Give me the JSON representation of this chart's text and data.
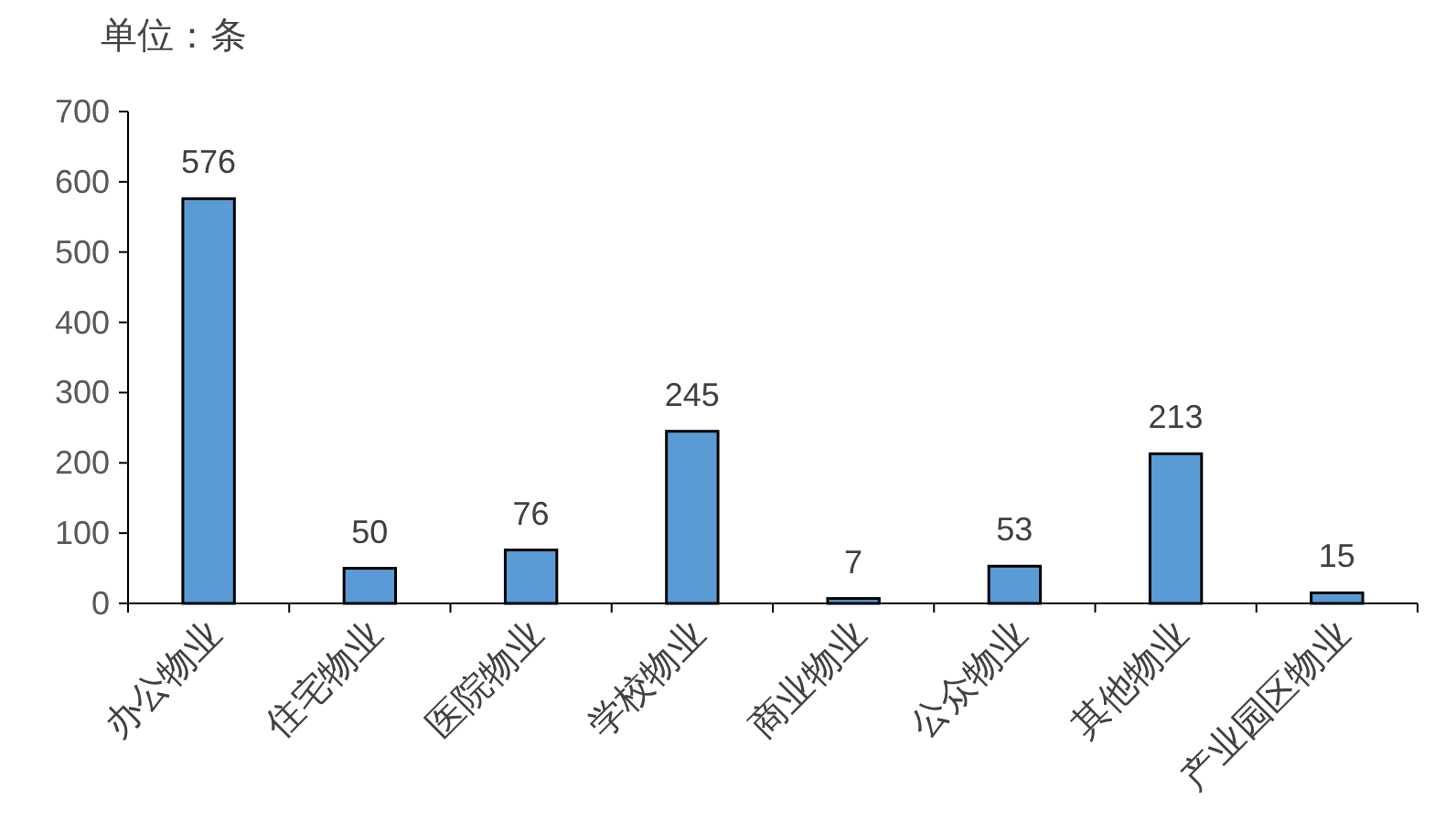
{
  "chart_data": {
    "type": "bar",
    "ylabel": "单位：条",
    "categories": [
      "办公物业",
      "住宅物业",
      "医院物业",
      "学校物业",
      "商业物业",
      "公众物业",
      "其他物业",
      "产业园区物业"
    ],
    "values": [
      576,
      50,
      76,
      245,
      7,
      53,
      213,
      15
    ],
    "color": "#5b9bd5",
    "ylim": [
      0,
      700
    ],
    "yticks": [
      0,
      100,
      200,
      300,
      400,
      500,
      600,
      700
    ],
    "data_labels": true
  }
}
